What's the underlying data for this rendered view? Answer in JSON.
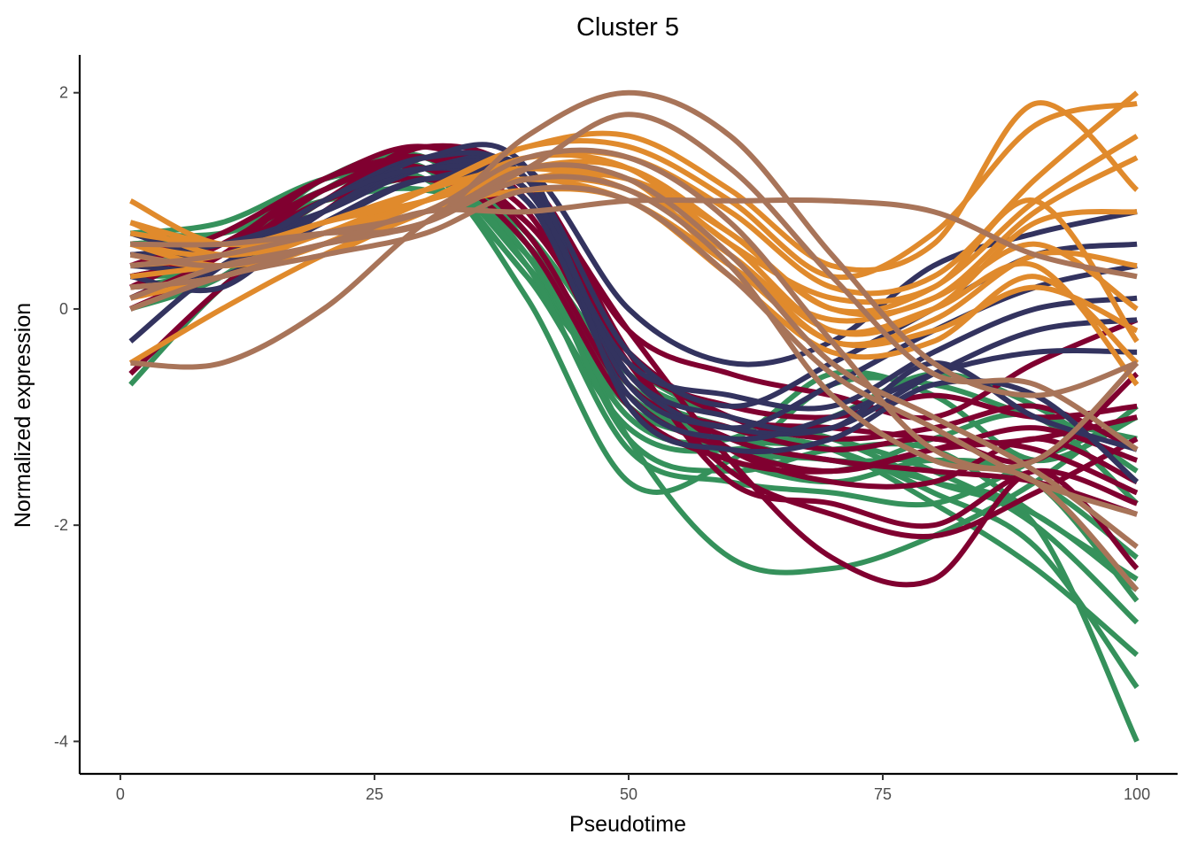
{
  "chart_data": {
    "type": "line",
    "title": "Cluster 5",
    "xlabel": "Pseudotime",
    "ylabel": "Normalized expression",
    "xlim": [
      -4,
      104
    ],
    "ylim": [
      -4.3,
      2.35
    ],
    "x_ticks": [
      0,
      25,
      50,
      75,
      100
    ],
    "x_tick_labels": [
      "0",
      "25",
      "50",
      "75",
      "100"
    ],
    "y_ticks": [
      2,
      0,
      -2,
      -4
    ],
    "y_tick_labels": [
      "2",
      "0",
      "-2",
      "-4"
    ],
    "grid": false,
    "legend": "none",
    "colors": {
      "green": "#35915b",
      "crimson": "#800030",
      "navy": "#33335f",
      "orange": "#e08a2c",
      "tan": "#a87459"
    },
    "x_knots": [
      1,
      10,
      20,
      30,
      40,
      50,
      60,
      70,
      80,
      90,
      100
    ],
    "series": [
      {
        "color": "green",
        "values": [
          0.7,
          0.8,
          1.2,
          1.3,
          0.3,
          -0.8,
          -1.3,
          -1.4,
          -1.6,
          -2.0,
          -4.0
        ]
      },
      {
        "color": "green",
        "values": [
          0.5,
          0.6,
          1.1,
          1.3,
          0.4,
          -0.9,
          -1.2,
          -1.3,
          -1.7,
          -2.2,
          -3.5
        ]
      },
      {
        "color": "green",
        "values": [
          0.3,
          0.5,
          1.0,
          1.3,
          0.5,
          -0.7,
          -1.1,
          -1.3,
          -1.8,
          -2.4,
          -3.2
        ]
      },
      {
        "color": "green",
        "values": [
          0.6,
          0.7,
          1.1,
          1.4,
          0.7,
          -0.5,
          -1.0,
          -1.2,
          -1.5,
          -2.0,
          -2.9
        ]
      },
      {
        "color": "green",
        "values": [
          0.4,
          0.6,
          1.2,
          1.4,
          0.6,
          -0.6,
          -1.0,
          -1.2,
          -1.6,
          -1.9,
          -2.6
        ]
      },
      {
        "color": "green",
        "values": [
          0.2,
          0.4,
          1.0,
          1.3,
          0.4,
          -0.8,
          -1.2,
          -1.4,
          -1.4,
          -1.6,
          -2.3
        ]
      },
      {
        "color": "green",
        "values": [
          -0.7,
          0.2,
          0.9,
          1.2,
          0.6,
          -1.2,
          -2.3,
          -2.4,
          -2.1,
          -1.6,
          -0.9
        ]
      },
      {
        "color": "green",
        "values": [
          0.8,
          0.6,
          1.1,
          1.3,
          0.1,
          -1.6,
          -1.4,
          -0.7,
          -0.7,
          -1.0,
          -1.2
        ]
      },
      {
        "color": "green",
        "values": [
          0.5,
          0.5,
          1.2,
          1.4,
          0.5,
          -1.0,
          -1.2,
          -0.6,
          -0.8,
          -1.4,
          -1.0
        ]
      },
      {
        "color": "green",
        "values": [
          0.6,
          0.7,
          1.2,
          1.2,
          0.3,
          -1.1,
          -1.3,
          -1.0,
          -0.6,
          -0.9,
          -1.5
        ]
      },
      {
        "color": "green",
        "values": [
          0.0,
          0.3,
          1.0,
          1.3,
          0.4,
          -1.3,
          -1.6,
          -1.7,
          -1.8,
          -1.4,
          -1.0
        ]
      },
      {
        "color": "green",
        "values": [
          0.3,
          0.4,
          1.1,
          1.4,
          0.5,
          -1.0,
          -1.3,
          -1.5,
          -1.2,
          -1.0,
          -1.8
        ]
      },
      {
        "color": "green",
        "values": [
          0.7,
          0.7,
          1.0,
          1.1,
          0.7,
          -0.9,
          -1.4,
          -1.6,
          -1.4,
          -1.6,
          -2.7
        ]
      },
      {
        "color": "green",
        "values": [
          0.1,
          0.5,
          1.1,
          1.3,
          0.6,
          -1.2,
          -1.5,
          -1.3,
          -1.3,
          -1.9,
          -2.5
        ]
      },
      {
        "color": "crimson",
        "values": [
          0.2,
          0.6,
          1.1,
          1.4,
          1.1,
          -0.2,
          -1.4,
          -2.3,
          -2.5,
          -1.5,
          -2.4
        ]
      },
      {
        "color": "crimson",
        "values": [
          0.4,
          0.7,
          1.2,
          1.5,
          1.0,
          -0.5,
          -1.5,
          -1.9,
          -2.1,
          -1.7,
          -1.2
        ]
      },
      {
        "color": "crimson",
        "values": [
          0.0,
          0.4,
          1.0,
          1.4,
          1.2,
          -0.4,
          -1.6,
          -1.8,
          -2.0,
          -1.5,
          -1.8
        ]
      },
      {
        "color": "crimson",
        "values": [
          0.3,
          0.5,
          1.1,
          1.4,
          1.0,
          -0.5,
          -1.3,
          -1.6,
          -1.6,
          -1.2,
          -1.6
        ]
      },
      {
        "color": "crimson",
        "values": [
          -0.6,
          0.2,
          0.9,
          1.4,
          0.8,
          -0.4,
          -1.0,
          -1.2,
          -1.1,
          -0.9,
          -1.3
        ]
      },
      {
        "color": "crimson",
        "values": [
          0.6,
          0.6,
          1.0,
          1.5,
          1.2,
          -0.2,
          -0.6,
          -0.8,
          -1.0,
          -0.5,
          -0.1
        ]
      },
      {
        "color": "crimson",
        "values": [
          0.1,
          0.5,
          1.2,
          1.3,
          0.9,
          -0.7,
          -1.1,
          -1.3,
          -1.2,
          -1.4,
          -0.6
        ]
      },
      {
        "color": "crimson",
        "values": [
          0.2,
          0.6,
          1.1,
          1.4,
          0.7,
          -0.8,
          -1.3,
          -1.5,
          -1.3,
          -1.1,
          -1.4
        ]
      },
      {
        "color": "crimson",
        "values": [
          0.4,
          0.5,
          1.0,
          1.5,
          1.0,
          -0.6,
          -1.2,
          -1.4,
          -1.5,
          -1.6,
          -1.9
        ]
      },
      {
        "color": "crimson",
        "values": [
          0.0,
          0.4,
          1.1,
          1.3,
          0.6,
          -0.9,
          -1.4,
          -1.5,
          -1.3,
          -1.2,
          -1.0
        ]
      },
      {
        "color": "crimson",
        "values": [
          0.5,
          0.6,
          1.2,
          1.4,
          1.1,
          -0.4,
          -1.0,
          -1.1,
          -1.2,
          -1.3,
          -1.7
        ]
      },
      {
        "color": "crimson",
        "values": [
          0.3,
          0.5,
          1.0,
          1.2,
          0.8,
          -0.5,
          -0.9,
          -1.0,
          -0.8,
          -1.0,
          -0.9
        ]
      },
      {
        "color": "navy",
        "values": [
          0.5,
          0.6,
          0.9,
          1.3,
          1.3,
          0.0,
          -0.5,
          -0.3,
          0.4,
          0.7,
          0.9
        ]
      },
      {
        "color": "navy",
        "values": [
          -0.3,
          0.4,
          0.9,
          1.3,
          1.2,
          -0.4,
          -0.9,
          -0.5,
          0.0,
          0.5,
          0.6
        ]
      },
      {
        "color": "navy",
        "values": [
          0.7,
          0.5,
          0.8,
          1.2,
          1.1,
          -0.6,
          -1.1,
          -0.7,
          -0.2,
          0.2,
          0.4
        ]
      },
      {
        "color": "navy",
        "values": [
          0.3,
          0.2,
          0.9,
          1.3,
          1.0,
          -0.5,
          -0.8,
          -0.9,
          -0.4,
          0.0,
          0.1
        ]
      },
      {
        "color": "navy",
        "values": [
          0.6,
          0.5,
          1.0,
          1.4,
          1.2,
          -0.7,
          -1.1,
          -1.1,
          -0.6,
          -0.2,
          -0.1
        ]
      },
      {
        "color": "navy",
        "values": [
          0.2,
          0.3,
          0.8,
          1.2,
          1.0,
          -0.8,
          -1.2,
          -1.0,
          -0.6,
          -0.4,
          -0.4
        ]
      },
      {
        "color": "navy",
        "values": [
          0.4,
          0.4,
          0.9,
          1.4,
          1.3,
          -0.9,
          -1.3,
          -1.2,
          -0.7,
          -0.8,
          -1.6
        ]
      },
      {
        "color": "navy",
        "values": [
          0.1,
          0.4,
          1.0,
          1.3,
          1.1,
          -0.6,
          -1.0,
          -1.1,
          -0.5,
          -1.0,
          -1.3
        ]
      },
      {
        "color": "orange",
        "values": [
          1.0,
          0.6,
          0.8,
          1.1,
          1.5,
          1.6,
          1.1,
          0.4,
          0.6,
          1.9,
          1.1
        ]
      },
      {
        "color": "orange",
        "values": [
          0.8,
          0.5,
          0.7,
          1.1,
          1.5,
          1.5,
          1.0,
          0.3,
          0.7,
          1.7,
          1.9
        ]
      },
      {
        "color": "orange",
        "values": [
          0.6,
          0.4,
          0.6,
          1.0,
          1.4,
          1.4,
          0.9,
          0.2,
          0.3,
          1.2,
          2.0
        ]
      },
      {
        "color": "orange",
        "values": [
          -0.5,
          0.0,
          0.5,
          0.9,
          1.3,
          1.3,
          0.7,
          0.0,
          0.2,
          1.0,
          1.6
        ]
      },
      {
        "color": "orange",
        "values": [
          0.4,
          0.5,
          0.8,
          1.0,
          1.3,
          1.2,
          0.6,
          -0.2,
          0.0,
          0.8,
          0.9
        ]
      },
      {
        "color": "orange",
        "values": [
          0.7,
          0.6,
          0.7,
          1.0,
          1.2,
          1.1,
          0.5,
          -0.3,
          -0.1,
          0.5,
          0.4
        ]
      },
      {
        "color": "orange",
        "values": [
          0.2,
          0.3,
          0.6,
          0.9,
          1.2,
          1.2,
          0.4,
          -0.1,
          0.1,
          0.6,
          0.0
        ]
      },
      {
        "color": "orange",
        "values": [
          0.5,
          0.4,
          0.7,
          1.0,
          1.4,
          1.3,
          0.6,
          0.1,
          0.2,
          1.0,
          -0.3
        ]
      },
      {
        "color": "orange",
        "values": [
          0.3,
          0.4,
          0.5,
          0.9,
          1.1,
          1.0,
          0.3,
          -0.4,
          -0.3,
          0.3,
          -0.5
        ]
      },
      {
        "color": "orange",
        "values": [
          0.6,
          0.5,
          0.8,
          1.1,
          1.3,
          1.1,
          0.5,
          -0.2,
          0.0,
          0.4,
          -0.7
        ]
      },
      {
        "color": "orange",
        "values": [
          0.1,
          0.3,
          0.6,
          1.0,
          1.2,
          1.0,
          0.4,
          -0.3,
          -0.2,
          0.2,
          -0.2
        ]
      },
      {
        "color": "orange",
        "values": [
          0.8,
          0.6,
          0.7,
          0.9,
          1.2,
          1.2,
          0.7,
          0.0,
          0.1,
          0.9,
          1.4
        ]
      },
      {
        "color": "tan",
        "values": [
          0.6,
          0.6,
          0.7,
          0.8,
          1.6,
          2.0,
          1.6,
          0.5,
          -0.5,
          -0.8,
          -0.5
        ]
      },
      {
        "color": "tan",
        "values": [
          -0.5,
          -0.5,
          0.0,
          0.8,
          1.3,
          1.8,
          1.3,
          0.3,
          -0.6,
          -0.7,
          -1.3
        ]
      },
      {
        "color": "tan",
        "values": [
          0.1,
          0.4,
          0.6,
          0.9,
          0.9,
          1.0,
          1.0,
          1.0,
          0.9,
          0.5,
          0.3
        ]
      },
      {
        "color": "tan",
        "values": [
          0.4,
          0.5,
          0.7,
          0.9,
          1.4,
          1.4,
          0.8,
          -0.3,
          -1.3,
          -1.4,
          -0.5
        ]
      },
      {
        "color": "tan",
        "values": [
          0.2,
          0.3,
          0.6,
          0.8,
          1.2,
          1.1,
          0.4,
          -0.8,
          -1.4,
          -1.6,
          -2.6
        ]
      },
      {
        "color": "tan",
        "values": [
          0.5,
          0.4,
          0.6,
          0.8,
          1.3,
          1.2,
          0.5,
          -0.5,
          -1.0,
          -1.5,
          -2.2
        ]
      },
      {
        "color": "tan",
        "values": [
          0.0,
          0.3,
          0.5,
          0.7,
          1.1,
          1.0,
          0.3,
          -0.6,
          -1.1,
          -1.6,
          -1.9
        ]
      }
    ]
  }
}
